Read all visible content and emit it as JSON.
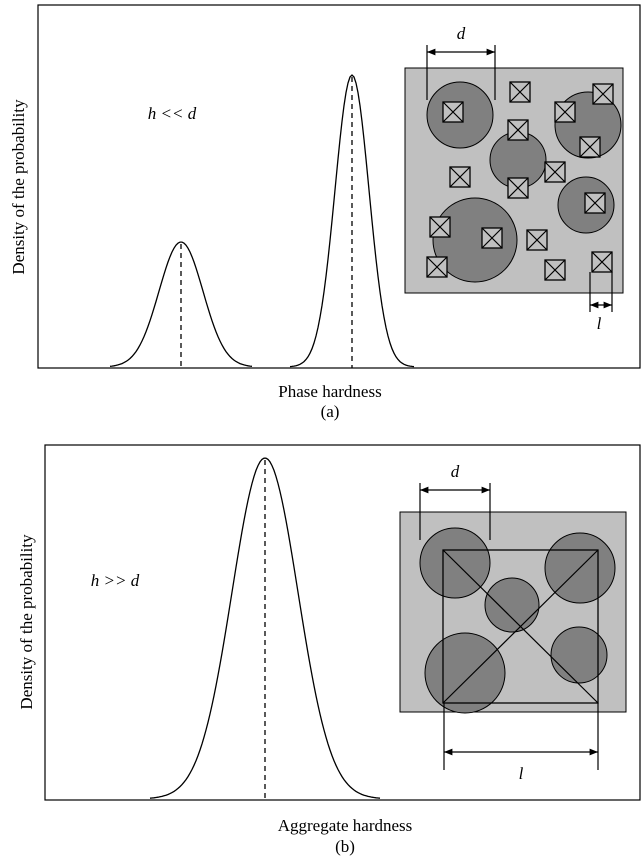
{
  "panel_a": {
    "y_label": "Density of the probability",
    "x_label": "Phase hardness",
    "caption": "(a)",
    "condition": "h << d",
    "d_label": "d",
    "l_label": "l"
  },
  "panel_b": {
    "y_label": "Density of the probability",
    "x_label": "Aggregate hardness",
    "caption": "(b)",
    "condition": "h >> d",
    "d_label": "d",
    "l_label": "l"
  }
}
